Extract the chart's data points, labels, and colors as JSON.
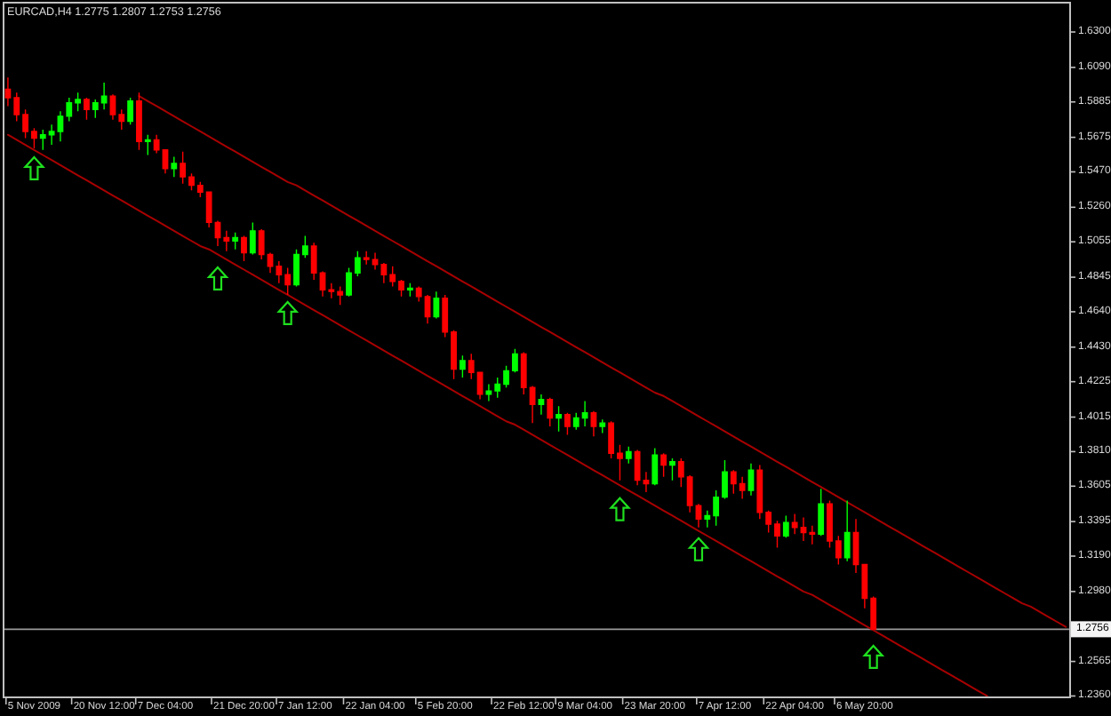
{
  "chart_data": {
    "type": "candlestick",
    "title": "EURCAD,H4 1.2775 1.2807 1.2753 1.2756",
    "categories": [
      null,
      null,
      null,
      "5 Nov 2009",
      null,
      null,
      null,
      null,
      null,
      null,
      null,
      "20 Nov 12:00",
      null,
      null,
      null,
      null,
      null,
      null,
      "7 Dec 04:00",
      null,
      null,
      null,
      null,
      null,
      null,
      null,
      null,
      "21 Dec 20:00",
      null,
      null,
      null,
      null,
      null,
      null,
      "7 Jan 12:00",
      null,
      null,
      null,
      null,
      null,
      null,
      null,
      "22 Jan 04:00",
      null,
      null,
      null,
      null,
      null,
      null,
      null,
      "5 Feb 20:00",
      null,
      null,
      null,
      null,
      null,
      null,
      null,
      null,
      "22 Feb 12:00",
      null,
      null,
      null,
      null,
      null,
      null,
      "9 Mar 04:00",
      null,
      null,
      null,
      null,
      null,
      null,
      null,
      "23 Mar 20:00",
      null,
      null,
      null,
      null,
      null,
      null,
      null,
      "7 Apr 12:00",
      null,
      null,
      null,
      null,
      null,
      null,
      null,
      "22 Apr 04:00",
      null,
      null,
      null,
      null,
      null,
      null,
      null,
      "6 May 20:00",
      null,
      null,
      null,
      null,
      null,
      null,
      null,
      null,
      null,
      null,
      null,
      null,
      null,
      null,
      null,
      null,
      null,
      null,
      null,
      null,
      null,
      null,
      null
    ],
    "ohlc": [
      [
        1.596,
        1.603,
        1.586,
        1.591
      ],
      [
        1.591,
        1.594,
        1.577,
        1.581
      ],
      [
        1.581,
        1.584,
        1.567,
        1.571
      ],
      [
        1.571,
        1.573,
        1.561,
        1.567
      ],
      [
        1.567,
        1.572,
        1.56,
        1.569
      ],
      [
        1.569,
        1.575,
        1.563,
        1.571
      ],
      [
        1.571,
        1.583,
        1.565,
        1.58
      ],
      [
        1.58,
        1.591,
        1.577,
        1.588
      ],
      [
        1.588,
        1.594,
        1.583,
        1.59
      ],
      [
        1.59,
        1.591,
        1.578,
        1.584
      ],
      [
        1.584,
        1.59,
        1.579,
        1.588
      ],
      [
        1.588,
        1.6,
        1.584,
        1.592
      ],
      [
        1.592,
        1.593,
        1.578,
        1.581
      ],
      [
        1.581,
        1.584,
        1.572,
        1.577
      ],
      [
        1.577,
        1.591,
        1.575,
        1.589
      ],
      [
        1.589,
        1.594,
        1.56,
        1.565
      ],
      [
        1.565,
        1.569,
        1.557,
        1.566
      ],
      [
        1.566,
        1.569,
        1.558,
        1.56
      ],
      [
        1.56,
        1.56,
        1.546,
        1.549
      ],
      [
        1.549,
        1.556,
        1.544,
        1.552
      ],
      [
        1.552,
        1.559,
        1.54,
        1.544
      ],
      [
        1.544,
        1.546,
        1.536,
        1.539
      ],
      [
        1.539,
        1.541,
        1.532,
        1.535
      ],
      [
        1.535,
        1.535,
        1.514,
        1.517
      ],
      [
        1.517,
        1.518,
        1.503,
        1.508
      ],
      [
        1.508,
        1.512,
        1.5,
        1.506
      ],
      [
        1.506,
        1.511,
        1.501,
        1.508
      ],
      [
        1.508,
        1.509,
        1.494,
        1.499
      ],
      [
        1.499,
        1.517,
        1.498,
        1.512
      ],
      [
        1.512,
        1.513,
        1.495,
        1.498
      ],
      [
        1.498,
        1.499,
        1.487,
        1.491
      ],
      [
        1.491,
        1.494,
        1.481,
        1.486
      ],
      [
        1.486,
        1.49,
        1.474,
        1.48
      ],
      [
        1.48,
        1.501,
        1.479,
        1.498
      ],
      [
        1.498,
        1.509,
        1.496,
        1.503
      ],
      [
        1.503,
        1.505,
        1.483,
        1.487
      ],
      [
        1.487,
        1.488,
        1.473,
        1.477
      ],
      [
        1.477,
        1.481,
        1.472,
        1.476
      ],
      [
        1.476,
        1.479,
        1.468,
        1.474
      ],
      [
        1.474,
        1.49,
        1.473,
        1.487
      ],
      [
        1.487,
        1.5,
        1.485,
        1.496
      ],
      [
        1.496,
        1.5,
        1.492,
        1.495
      ],
      [
        1.495,
        1.499,
        1.489,
        1.492
      ],
      [
        1.492,
        1.493,
        1.481,
        1.486
      ],
      [
        1.486,
        1.491,
        1.479,
        1.482
      ],
      [
        1.482,
        1.483,
        1.473,
        1.477
      ],
      [
        1.477,
        1.481,
        1.473,
        1.478
      ],
      [
        1.478,
        1.479,
        1.47,
        1.473
      ],
      [
        1.473,
        1.474,
        1.457,
        1.461
      ],
      [
        1.461,
        1.476,
        1.46,
        1.472
      ],
      [
        1.472,
        1.474,
        1.449,
        1.452
      ],
      [
        1.452,
        1.453,
        1.424,
        1.43
      ],
      [
        1.43,
        1.438,
        1.425,
        1.435
      ],
      [
        1.435,
        1.439,
        1.424,
        1.428
      ],
      [
        1.428,
        1.428,
        1.412,
        1.415
      ],
      [
        1.415,
        1.421,
        1.411,
        1.417
      ],
      [
        1.417,
        1.425,
        1.413,
        1.421
      ],
      [
        1.421,
        1.432,
        1.419,
        1.429
      ],
      [
        1.429,
        1.442,
        1.428,
        1.439
      ],
      [
        1.439,
        1.44,
        1.415,
        1.419
      ],
      [
        1.419,
        1.42,
        1.398,
        1.409
      ],
      [
        1.409,
        1.415,
        1.403,
        1.412
      ],
      [
        1.412,
        1.413,
        1.396,
        1.401
      ],
      [
        1.401,
        1.408,
        1.393,
        1.403
      ],
      [
        1.403,
        1.404,
        1.391,
        1.396
      ],
      [
        1.396,
        1.404,
        1.394,
        1.401
      ],
      [
        1.401,
        1.411,
        1.396,
        1.404
      ],
      [
        1.404,
        1.405,
        1.39,
        1.396
      ],
      [
        1.396,
        1.4,
        1.392,
        1.398
      ],
      [
        1.398,
        1.399,
        1.377,
        1.38
      ],
      [
        1.38,
        1.385,
        1.364,
        1.377
      ],
      [
        1.377,
        1.384,
        1.374,
        1.381
      ],
      [
        1.381,
        1.382,
        1.361,
        1.364
      ],
      [
        1.364,
        1.369,
        1.357,
        1.362
      ],
      [
        1.362,
        1.383,
        1.361,
        1.379
      ],
      [
        1.379,
        1.38,
        1.366,
        1.373
      ],
      [
        1.373,
        1.377,
        1.364,
        1.375
      ],
      [
        1.375,
        1.377,
        1.36,
        1.366
      ],
      [
        1.366,
        1.367,
        1.345,
        1.349
      ],
      [
        1.349,
        1.35,
        1.336,
        1.341
      ],
      [
        1.341,
        1.346,
        1.336,
        1.343
      ],
      [
        1.343,
        1.358,
        1.337,
        1.354
      ],
      [
        1.354,
        1.376,
        1.353,
        1.369
      ],
      [
        1.369,
        1.37,
        1.356,
        1.362
      ],
      [
        1.362,
        1.366,
        1.353,
        1.358
      ],
      [
        1.358,
        1.374,
        1.355,
        1.37
      ],
      [
        1.37,
        1.373,
        1.341,
        1.345
      ],
      [
        1.345,
        1.346,
        1.333,
        1.338
      ],
      [
        1.338,
        1.34,
        1.324,
        1.331
      ],
      [
        1.331,
        1.343,
        1.33,
        1.339
      ],
      [
        1.339,
        1.344,
        1.332,
        1.336
      ],
      [
        1.336,
        1.342,
        1.328,
        1.333
      ],
      [
        1.333,
        1.337,
        1.326,
        1.332
      ],
      [
        1.332,
        1.359,
        1.331,
        1.35
      ],
      [
        1.35,
        1.352,
        1.324,
        1.328
      ],
      [
        1.328,
        1.331,
        1.314,
        1.318
      ],
      [
        1.318,
        1.352,
        1.316,
        1.333
      ],
      [
        1.333,
        1.341,
        1.309,
        1.314
      ],
      [
        1.314,
        1.314,
        1.288,
        1.294
      ],
      [
        1.294,
        1.295,
        1.2753,
        1.2756
      ],
      null,
      null,
      null,
      null,
      null,
      null,
      null,
      null,
      null,
      null,
      null,
      null,
      null,
      null,
      null,
      null,
      null,
      null,
      null,
      null,
      null,
      null
    ],
    "colors": [
      "#ff0000",
      "#ff0000",
      "#ff0000",
      "#ff0000",
      "#00ff00",
      "#00ff00",
      "#00ff00",
      "#00ff00",
      "#00ff00",
      "#ff0000",
      "#00ff00",
      "#00ff00",
      "#ff0000",
      "#ff0000",
      "#00ff00",
      "#ff0000",
      "#00ff00",
      "#ff0000",
      "#ff0000",
      "#00ff00",
      "#ff0000",
      "#ff0000",
      "#ff0000",
      "#ff0000",
      "#ff0000",
      "#ff0000",
      "#00ff00",
      "#ff0000",
      "#00ff00",
      "#ff0000",
      "#ff0000",
      "#ff0000",
      "#ff0000",
      "#00ff00",
      "#00ff00",
      "#ff0000",
      "#ff0000",
      "#ff0000",
      "#ff0000",
      "#00ff00",
      "#00ff00",
      "#ff0000",
      "#ff0000",
      "#ff0000",
      "#ff0000",
      "#ff0000",
      "#00ff00",
      "#ff0000",
      "#ff0000",
      "#00ff00",
      "#ff0000",
      "#ff0000",
      "#00ff00",
      "#ff0000",
      "#ff0000",
      "#00ff00",
      "#00ff00",
      "#00ff00",
      "#00ff00",
      "#ff0000",
      "#ff0000",
      "#00ff00",
      "#ff0000",
      "#00ff00",
      "#ff0000",
      "#00ff00",
      "#00ff00",
      "#ff0000",
      "#00ff00",
      "#ff0000",
      "#ff0000",
      "#00ff00",
      "#ff0000",
      "#ff0000",
      "#00ff00",
      "#ff0000",
      "#00ff00",
      "#ff0000",
      "#ff0000",
      "#ff0000",
      "#00ff00",
      "#00ff00",
      "#00ff00",
      "#ff0000",
      "#ff0000",
      "#00ff00",
      "#ff0000",
      "#ff0000",
      "#ff0000",
      "#00ff00",
      "#ff0000",
      "#ff0000",
      "#ff0000",
      "#00ff00",
      "#ff0000",
      "#ff0000",
      "#00ff00",
      "#ff0000",
      "#ff0000",
      "#ff0000",
      null,
      null,
      null,
      null,
      null,
      null,
      null,
      null,
      null,
      null,
      null,
      null,
      null,
      null,
      null,
      null,
      null,
      null,
      null,
      null,
      null,
      null
    ],
    "series": [
      {
        "type": "line",
        "color": "#a80000",
        "values": [
          null,
          null,
          null,
          null,
          null,
          null,
          null,
          null,
          null,
          null,
          null,
          null,
          null,
          null,
          null,
          1.592,
          1.589,
          1.586,
          1.583,
          1.58,
          1.577,
          1.574,
          1.571,
          1.568,
          1.565,
          1.562,
          1.559,
          1.556,
          1.553,
          1.55,
          1.547,
          1.544,
          1.541,
          1.539,
          1.536,
          1.533,
          1.53,
          1.527,
          1.524,
          1.521,
          1.518,
          1.515,
          1.512,
          1.509,
          1.506,
          1.503,
          1.5,
          1.497,
          1.494,
          1.491,
          1.488,
          1.485,
          1.482,
          1.479,
          1.476,
          1.473,
          1.47,
          1.467,
          1.464,
          1.461,
          1.458,
          1.455,
          1.452,
          1.449,
          1.446,
          1.443,
          1.44,
          1.437,
          1.434,
          1.431,
          1.428,
          1.425,
          1.422,
          1.419,
          1.416,
          1.414,
          1.411,
          1.408,
          1.405,
          1.402,
          1.399,
          1.396,
          1.393,
          1.39,
          1.387,
          1.384,
          1.381,
          1.378,
          1.375,
          1.372,
          1.369,
          1.366,
          1.363,
          1.36,
          1.357,
          1.354,
          1.351,
          1.348,
          1.345,
          1.342,
          1.339,
          1.336,
          1.333,
          1.33,
          1.327,
          1.324,
          1.321,
          1.318,
          1.315,
          1.312,
          1.309,
          1.306,
          1.303,
          1.3,
          1.297,
          1.294,
          1.291,
          1.289,
          1.286,
          1.283,
          1.28,
          1.277
        ]
      },
      {
        "type": "line",
        "color": "#a80000",
        "values": [
          1.569,
          1.566,
          1.563,
          1.56,
          1.557,
          1.554,
          1.551,
          1.548,
          1.545,
          1.542,
          1.539,
          1.536,
          1.533,
          1.53,
          1.527,
          1.524,
          1.521,
          1.518,
          1.515,
          1.512,
          1.509,
          1.506,
          1.503,
          1.501,
          1.498,
          1.495,
          1.492,
          1.489,
          1.486,
          1.483,
          1.48,
          1.477,
          1.474,
          1.471,
          1.468,
          1.465,
          1.462,
          1.459,
          1.456,
          1.453,
          1.45,
          1.447,
          1.444,
          1.441,
          1.438,
          1.435,
          1.432,
          1.429,
          1.426,
          1.423,
          1.42,
          1.417,
          1.414,
          1.411,
          1.408,
          1.405,
          1.402,
          1.399,
          1.397,
          1.394,
          1.391,
          1.388,
          1.385,
          1.382,
          1.379,
          1.376,
          1.373,
          1.37,
          1.367,
          1.364,
          1.361,
          1.358,
          1.355,
          1.352,
          1.349,
          1.346,
          1.343,
          1.34,
          1.337,
          1.334,
          1.331,
          1.328,
          1.325,
          1.322,
          1.319,
          1.316,
          1.313,
          1.31,
          1.307,
          1.304,
          1.301,
          1.298,
          1.296,
          1.293,
          1.29,
          1.287,
          1.284,
          1.281,
          1.278,
          1.275,
          1.272,
          1.269,
          1.266,
          1.263,
          1.26,
          1.257,
          1.254,
          1.251,
          1.248,
          1.245,
          1.242,
          1.239,
          1.236,
          null,
          null,
          null,
          null,
          null,
          null,
          null,
          null,
          null
        ]
      }
    ],
    "ylim": [
      1.2352,
      1.6474
    ],
    "yticks": [
      {
        "value": 1.63,
        "label": "1.6300"
      },
      {
        "value": 1.609,
        "label": "1.6090"
      },
      {
        "value": 1.5885,
        "label": "1.5885"
      },
      {
        "value": 1.5675,
        "label": "1.5675"
      },
      {
        "value": 1.547,
        "label": "1.5470"
      },
      {
        "value": 1.526,
        "label": "1.5260"
      },
      {
        "value": 1.5055,
        "label": "1.5055"
      },
      {
        "value": 1.4845,
        "label": "1.4845"
      },
      {
        "value": 1.464,
        "label": "1.4640"
      },
      {
        "value": 1.443,
        "label": "1.4430"
      },
      {
        "value": 1.4225,
        "label": "1.4225"
      },
      {
        "value": 1.4015,
        "label": "1.4015"
      },
      {
        "value": 1.381,
        "label": "1.3810"
      },
      {
        "value": 1.3605,
        "label": "1.3605"
      },
      {
        "value": 1.3395,
        "label": "1.3395"
      },
      {
        "value": 1.319,
        "label": "1.3190"
      },
      {
        "value": 1.298,
        "label": "1.2980"
      },
      {
        "value": 1.2565,
        "label": "1.2565"
      },
      {
        "value": 1.236,
        "label": "1.2360"
      }
    ],
    "ref_lines": [
      {
        "axis": "y",
        "value": 1.2756,
        "label": "1.2756",
        "color": "#9a9a9a"
      }
    ]
  }
}
